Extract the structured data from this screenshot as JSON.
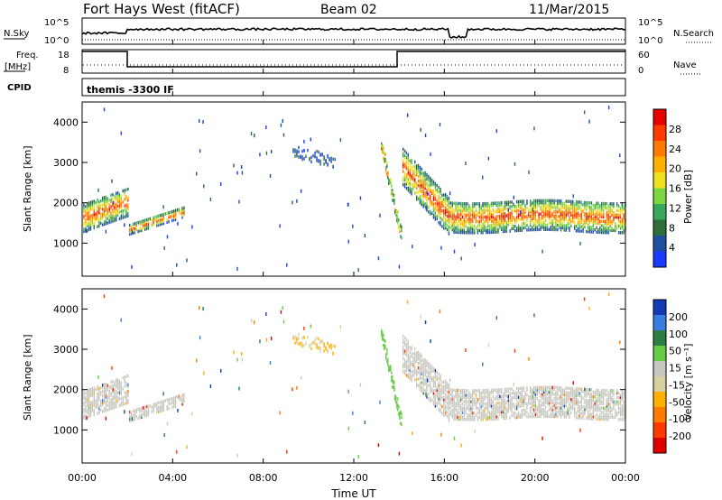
{
  "header": {
    "station": "Fort Hays West (fitACF)",
    "beam": "Beam 02",
    "date": "11/Mar/2015"
  },
  "summary_panels": {
    "nsky_label": "N.Sky",
    "nsky_ticks": [
      "10^5",
      "10^0"
    ],
    "nsearch_label": "N.Search",
    "nsearch_ticks": [
      "10^5",
      "10^0"
    ],
    "freq_label_line1": "Freq.",
    "freq_label_line2": "[MHz]",
    "freq_ticks": [
      "18",
      "8"
    ],
    "nave_label": "Nave",
    "nave_ticks": [
      "60",
      "0"
    ],
    "cpid_label": "CPID",
    "cpid_text": "themis -3300 IF"
  },
  "colors": {
    "power": [
      "#1a3bff",
      "#1f4f9e",
      "#2f6d3a",
      "#3aa85a",
      "#7fd645",
      "#f0e020",
      "#ffb000",
      "#ff7a00",
      "#ff3b00",
      "#e80000"
    ],
    "velocity": [
      "#1538b5",
      "#3a7de0",
      "#2e7d45",
      "#66cc44",
      "#c8c8c0",
      "#d8d0a0",
      "#ffb000",
      "#ff7a00",
      "#ff3a00",
      "#e00000"
    ]
  },
  "chart_data": [
    {
      "type": "heatmap",
      "name": "power",
      "ylabel": "Slant Range [km]",
      "yticks": [
        "1000",
        "2000",
        "3000",
        "4000"
      ],
      "xlim": [
        0,
        24
      ],
      "ylim": [
        180,
        4500
      ],
      "colorbar": {
        "label": "Power [dB]",
        "ticks": [
          "4",
          "8",
          "12",
          "16",
          "20",
          "24",
          "28"
        ],
        "range": [
          0,
          30
        ]
      }
    },
    {
      "type": "heatmap",
      "name": "velocity",
      "ylabel": "Slant Range [km]",
      "yticks": [
        "1000",
        "2000",
        "3000",
        "4000"
      ],
      "xlim": [
        0,
        24
      ],
      "ylim": [
        180,
        4500
      ],
      "colorbar": {
        "label": "Velocity [m s⁻¹]",
        "ticks": [
          "200",
          "100",
          "50",
          "15",
          "-15",
          "-50",
          "-100",
          "-200"
        ]
      }
    }
  ],
  "x_axis": {
    "ticks": [
      "00:00",
      "04:00",
      "08:00",
      "12:00",
      "16:00",
      "20:00",
      "00:00"
    ],
    "label": "Time UT"
  }
}
